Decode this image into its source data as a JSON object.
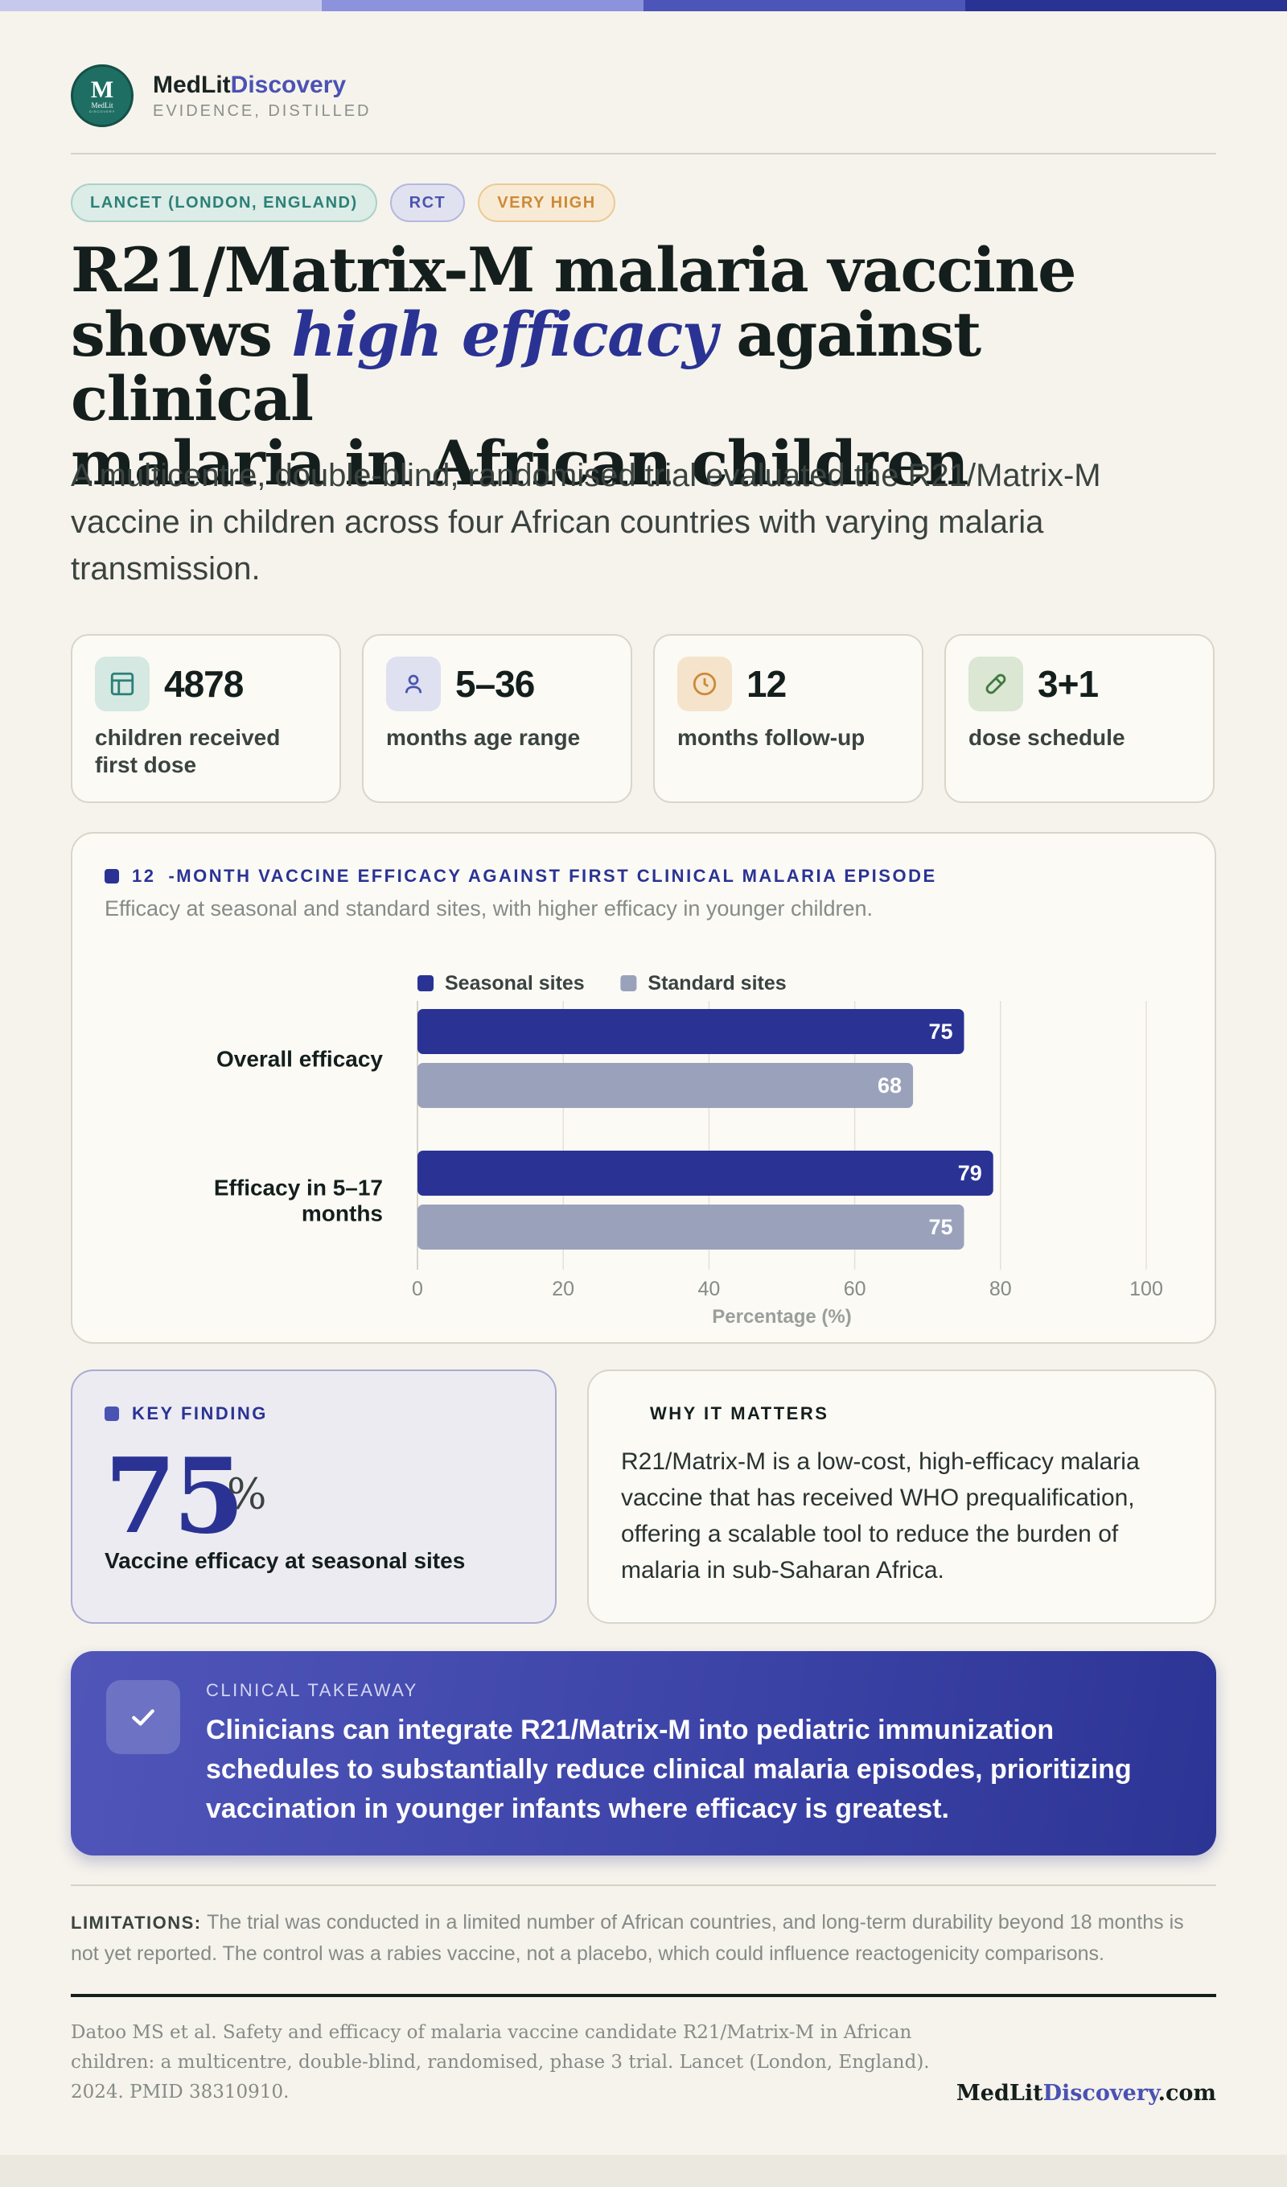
{
  "colors": {
    "topbar": [
      "#c7c9ec",
      "#8c93dc",
      "#4d55b9",
      "#2a3394"
    ],
    "teal": "#1f6e64",
    "indigo": "#2a3394",
    "seasonal": "#2a3394",
    "standard": "#9aa2bb",
    "gold": "#cc8a37",
    "green": "#3f7a3f"
  },
  "brand": {
    "logo_letter": "M",
    "logo_small": "MedLit",
    "logo_tiny": "DISCOVERY",
    "name_a": "MedLit",
    "name_b": "Discovery",
    "tagline": "EVIDENCE, DISTILLED"
  },
  "tags": [
    "LANCET (LONDON, ENGLAND)",
    "RCT",
    "VERY HIGH"
  ],
  "title": {
    "line1": "R21/Matrix-M malaria vaccine",
    "pre": "shows ",
    "em": "high efficacy",
    "post": " against clinical",
    "line3": "malaria in African children"
  },
  "subtitle": "A multicentre, double-blind, randomised trial evaluated the R21/Matrix-M vaccine in children across four African countries with varying malaria transmission.",
  "stats": [
    {
      "icon": "table-icon",
      "value": "4878",
      "label": "children received first dose"
    },
    {
      "icon": "person-icon",
      "value": "5–36",
      "label": "months age range"
    },
    {
      "icon": "clock-icon",
      "value": "12",
      "label": "months follow-up"
    },
    {
      "icon": "pill-icon",
      "value": "3+1",
      "label": "dose schedule"
    }
  ],
  "chart_section": {
    "num": "12",
    "heading": "-MONTH VACCINE EFFICACY AGAINST FIRST CLINICAL MALARIA EPISODE",
    "subheading": "Efficacy at seasonal and standard sites, with higher efficacy in younger children."
  },
  "chart_data": {
    "type": "bar",
    "orientation": "horizontal",
    "categories": [
      "Overall efficacy",
      "Efficacy in 5–17 months"
    ],
    "series": [
      {
        "name": "Seasonal sites",
        "values": [
          75,
          79
        ]
      },
      {
        "name": "Standard sites",
        "values": [
          68,
          75
        ]
      }
    ],
    "xlabel": "Percentage (%)",
    "xlim": [
      0,
      100
    ],
    "xticks": [
      0,
      20,
      40,
      60,
      80,
      100
    ],
    "grid": true,
    "legend": "top",
    "data_labels": true
  },
  "key_finding": {
    "heading": "KEY FINDING",
    "value": "75",
    "unit": "%",
    "label": "Vaccine efficacy at seasonal sites"
  },
  "why": {
    "heading": "WHY IT MATTERS",
    "body": "R21/Matrix-M is a low-cost, high-efficacy malaria vaccine that has received WHO prequalification, offering a scalable tool to reduce the burden of malaria in sub-Saharan Africa."
  },
  "takeaway": {
    "heading": "CLINICAL TAKEAWAY",
    "icon": "check-icon",
    "body": "Clinicians can integrate R21/Matrix-M into pediatric immunization schedules to substantially reduce clinical malaria episodes, prioritizing vaccination in younger infants where efficacy is greatest."
  },
  "limitations": {
    "label": "LIMITATIONS:",
    "text": " The trial was conducted in a limited number of African countries, and long-term durability beyond 18 months is not yet reported. The control was a rabies vaccine, not a placebo, which could influence reactogenicity comparisons."
  },
  "citation": "Datoo MS et al. Safety and efficacy of malaria vaccine candidate R21/Matrix-M in African children: a multicentre, double-blind, randomised, phase 3 trial. Lancet (London, England). 2024. PMID 38310910.",
  "footer_brand": {
    "a": "MedLit",
    "b": "Discovery",
    "c": ".com"
  }
}
